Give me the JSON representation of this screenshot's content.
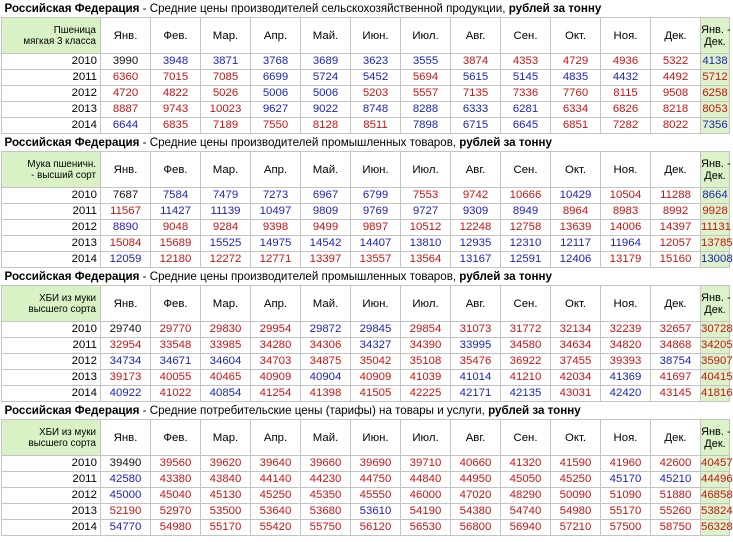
{
  "months": [
    "Янв.",
    "Фев.",
    "Мар.",
    "Апр.",
    "Май.",
    "Июн.",
    "Июл.",
    "Авг.",
    "Сен.",
    "Окт.",
    "Ноя.",
    "Дек."
  ],
  "total_label": [
    "Янв. -",
    "Дек."
  ],
  "colors": {
    "blue": "#1c24b8",
    "red": "#c81414",
    "black": "#111111",
    "header_bg": "#d8f2c6",
    "total_bg": "#dcf2c8"
  },
  "sections": [
    {
      "title": {
        "region": "Российская Федерация",
        "text": " - Средние цены производителей сельскохозяйственной продукции, ",
        "unit": "рублей за тонну"
      },
      "label": [
        "Пшеница",
        "мягкая 3 класса"
      ],
      "rows": [
        {
          "year": "2010",
          "values": [
            "3990",
            "3948",
            "3871",
            "3768",
            "3689",
            "3623",
            "3555",
            "3874",
            "4353",
            "4729",
            "4936",
            "5322"
          ],
          "total": "4138",
          "colors": "KBBBBBBRRRRRB"
        },
        {
          "year": "2011",
          "values": [
            "6360",
            "7015",
            "7085",
            "6699",
            "5724",
            "5452",
            "5694",
            "5615",
            "5145",
            "4835",
            "4432",
            "4492"
          ],
          "total": "5712",
          "colors": "RRRBBBRBBBBRR"
        },
        {
          "year": "2012",
          "values": [
            "4720",
            "4822",
            "5026",
            "5006",
            "5006",
            "5203",
            "5557",
            "7135",
            "7336",
            "7760",
            "8115",
            "9508"
          ],
          "total": "6258",
          "colors": "RRRBBRRRRRRRR"
        },
        {
          "year": "2013",
          "values": [
            "8887",
            "9743",
            "10023",
            "9627",
            "9022",
            "8748",
            "8288",
            "6333",
            "6281",
            "6334",
            "6826",
            "8218"
          ],
          "total": "8053",
          "colors": "RRRBBBBBBRRRR"
        },
        {
          "year": "2014",
          "values": [
            "6644",
            "6835",
            "7189",
            "7550",
            "8128",
            "8511",
            "7898",
            "6715",
            "6645",
            "6851",
            "7282",
            "8022"
          ],
          "total": "7356",
          "colors": "BRRRRRBBBRRRB"
        }
      ]
    },
    {
      "title": {
        "region": "Российская Федерация",
        "text": " - Средние цены производителей промышленных товаров, ",
        "unit": "рублей за тонну"
      },
      "label": [
        "Мука пшеничн.",
        "- высший сорт"
      ],
      "rows": [
        {
          "year": "2010",
          "values": [
            "7687",
            "7584",
            "7479",
            "7273",
            "6967",
            "6799",
            "7553",
            "9742",
            "10666",
            "10429",
            "10504",
            "11288"
          ],
          "total": "8664",
          "colors": "KBBBBBRRRBRRB"
        },
        {
          "year": "2011",
          "values": [
            "11567",
            "11427",
            "11139",
            "10497",
            "9809",
            "9769",
            "9727",
            "9309",
            "8949",
            "8964",
            "8983",
            "8992"
          ],
          "total": "9928",
          "colors": "RBBBBBBBBRRRR"
        },
        {
          "year": "2012",
          "values": [
            "8890",
            "9048",
            "9284",
            "9398",
            "9499",
            "9897",
            "10512",
            "12248",
            "12758",
            "13639",
            "14006",
            "14397"
          ],
          "total": "11131",
          "colors": "BRRRRRRRRRRRR"
        },
        {
          "year": "2013",
          "values": [
            "15084",
            "15689",
            "15525",
            "14975",
            "14542",
            "14407",
            "13810",
            "12935",
            "12310",
            "12117",
            "11964",
            "12057"
          ],
          "total": "13785",
          "colors": "RRBBBBBBBBBRR"
        },
        {
          "year": "2014",
          "values": [
            "12059",
            "12180",
            "12272",
            "12771",
            "13397",
            "13557",
            "13564",
            "13167",
            "12591",
            "12406",
            "13179",
            "15160"
          ],
          "total": "13008",
          "colors": "BRRRRRRBBBRRB"
        }
      ]
    },
    {
      "title": {
        "region": "Российская Федерация",
        "text": " - Средние цены производителей промышленных товаров, ",
        "unit": "рублей за тонну"
      },
      "label": [
        "ХБИ из муки",
        "высшего сорта"
      ],
      "rows": [
        {
          "year": "2010",
          "values": [
            "29740",
            "29770",
            "29830",
            "29954",
            "29872",
            "29845",
            "29854",
            "31073",
            "31772",
            "32134",
            "32239",
            "32657"
          ],
          "total": "30728",
          "colors": "KRRRBBRRRRRRR"
        },
        {
          "year": "2011",
          "values": [
            "32954",
            "33548",
            "33985",
            "34280",
            "34306",
            "34327",
            "34390",
            "33995",
            "34580",
            "34634",
            "34820",
            "34868"
          ],
          "total": "34205",
          "colors": "RRRRRBRBRRRRR"
        },
        {
          "year": "2012",
          "values": [
            "34734",
            "34671",
            "34604",
            "34703",
            "34875",
            "35042",
            "35108",
            "35476",
            "36922",
            "37455",
            "39393",
            "38754"
          ],
          "total": "35907",
          "colors": "BBBRRRRRRRRBR"
        },
        {
          "year": "2013",
          "values": [
            "39173",
            "40055",
            "40465",
            "40909",
            "40904",
            "40909",
            "41039",
            "41014",
            "41210",
            "42034",
            "41369",
            "41697"
          ],
          "total": "40415",
          "colors": "RRRRBRRBRRBRR"
        },
        {
          "year": "2014",
          "values": [
            "40922",
            "41022",
            "40854",
            "41254",
            "41398",
            "41505",
            "42225",
            "42171",
            "42135",
            "43031",
            "42420",
            "43145"
          ],
          "total": "41816",
          "colors": "BRBRRRRBBRBRR"
        }
      ]
    },
    {
      "title": {
        "region": "Российская Федерация",
        "text": " - Средние потребительские цены (тарифы) на товары и услуги, ",
        "unit": "рублей за тонну"
      },
      "label": [
        "ХБИ из муки",
        "высшего сорта"
      ],
      "rows": [
        {
          "year": "2010",
          "values": [
            "39490",
            "39560",
            "39620",
            "39640",
            "39660",
            "39690",
            "39710",
            "40660",
            "41320",
            "41590",
            "41960",
            "42600"
          ],
          "total": "40457",
          "colors": "KRRRRRRRRRRRR"
        },
        {
          "year": "2011",
          "values": [
            "42580",
            "43380",
            "43840",
            "44140",
            "44230",
            "44750",
            "44840",
            "44950",
            "45050",
            "45250",
            "45170",
            "45210"
          ],
          "total": "44496",
          "colors": "BRRRRRRRRRBBR"
        },
        {
          "year": "2012",
          "values": [
            "45000",
            "45040",
            "45130",
            "45250",
            "45350",
            "45550",
            "46000",
            "47020",
            "48290",
            "50090",
            "51090",
            "51880"
          ],
          "total": "46858",
          "colors": "BRRRRRRRRRRRR"
        },
        {
          "year": "2013",
          "values": [
            "52190",
            "52970",
            "53500",
            "53640",
            "53680",
            "53610",
            "54190",
            "54380",
            "54740",
            "54980",
            "55170",
            "55260"
          ],
          "total": "53824",
          "colors": "RRRRRBRRRRRRR"
        },
        {
          "year": "2014",
          "values": [
            "54770",
            "54980",
            "55170",
            "55420",
            "55750",
            "56120",
            "56530",
            "56800",
            "56940",
            "57210",
            "57500",
            "58750"
          ],
          "total": "56328",
          "colors": "BRRRRRRRRRRRR"
        }
      ]
    }
  ]
}
